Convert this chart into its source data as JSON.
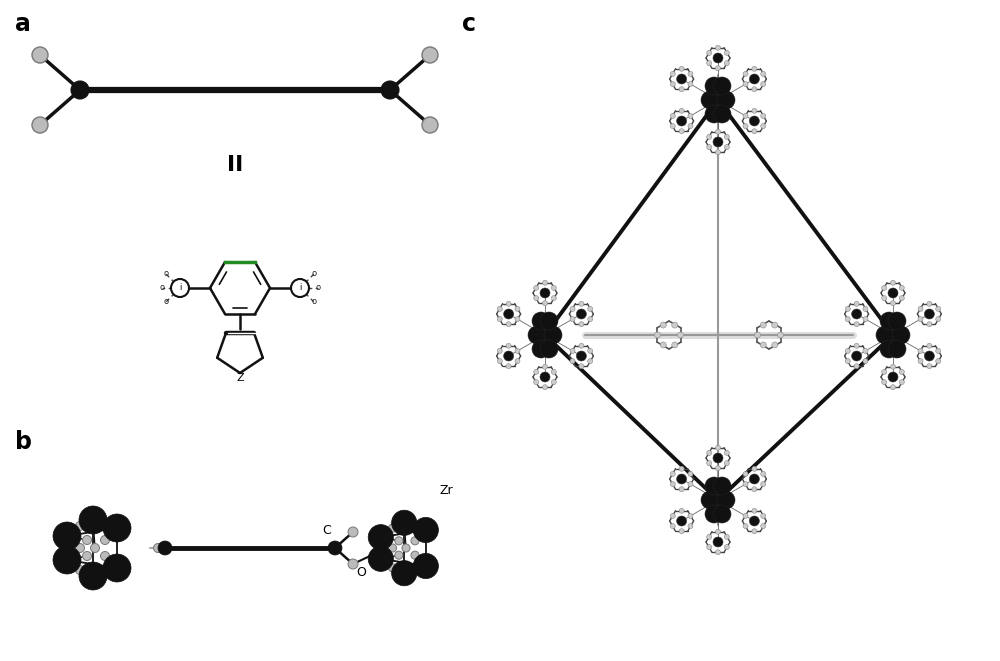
{
  "background_color": "#ffffff",
  "label_a": "a",
  "label_b": "b",
  "label_c": "c",
  "label_II": "II",
  "label_Zr": "Zr",
  "label_O": "O",
  "label_C": "C",
  "fig_width": 10.0,
  "fig_height": 6.61,
  "dpi": 100,
  "dark": "#111111",
  "gray": "#aaaaaa",
  "mid_gray": "#777777",
  "green": "#228B22"
}
